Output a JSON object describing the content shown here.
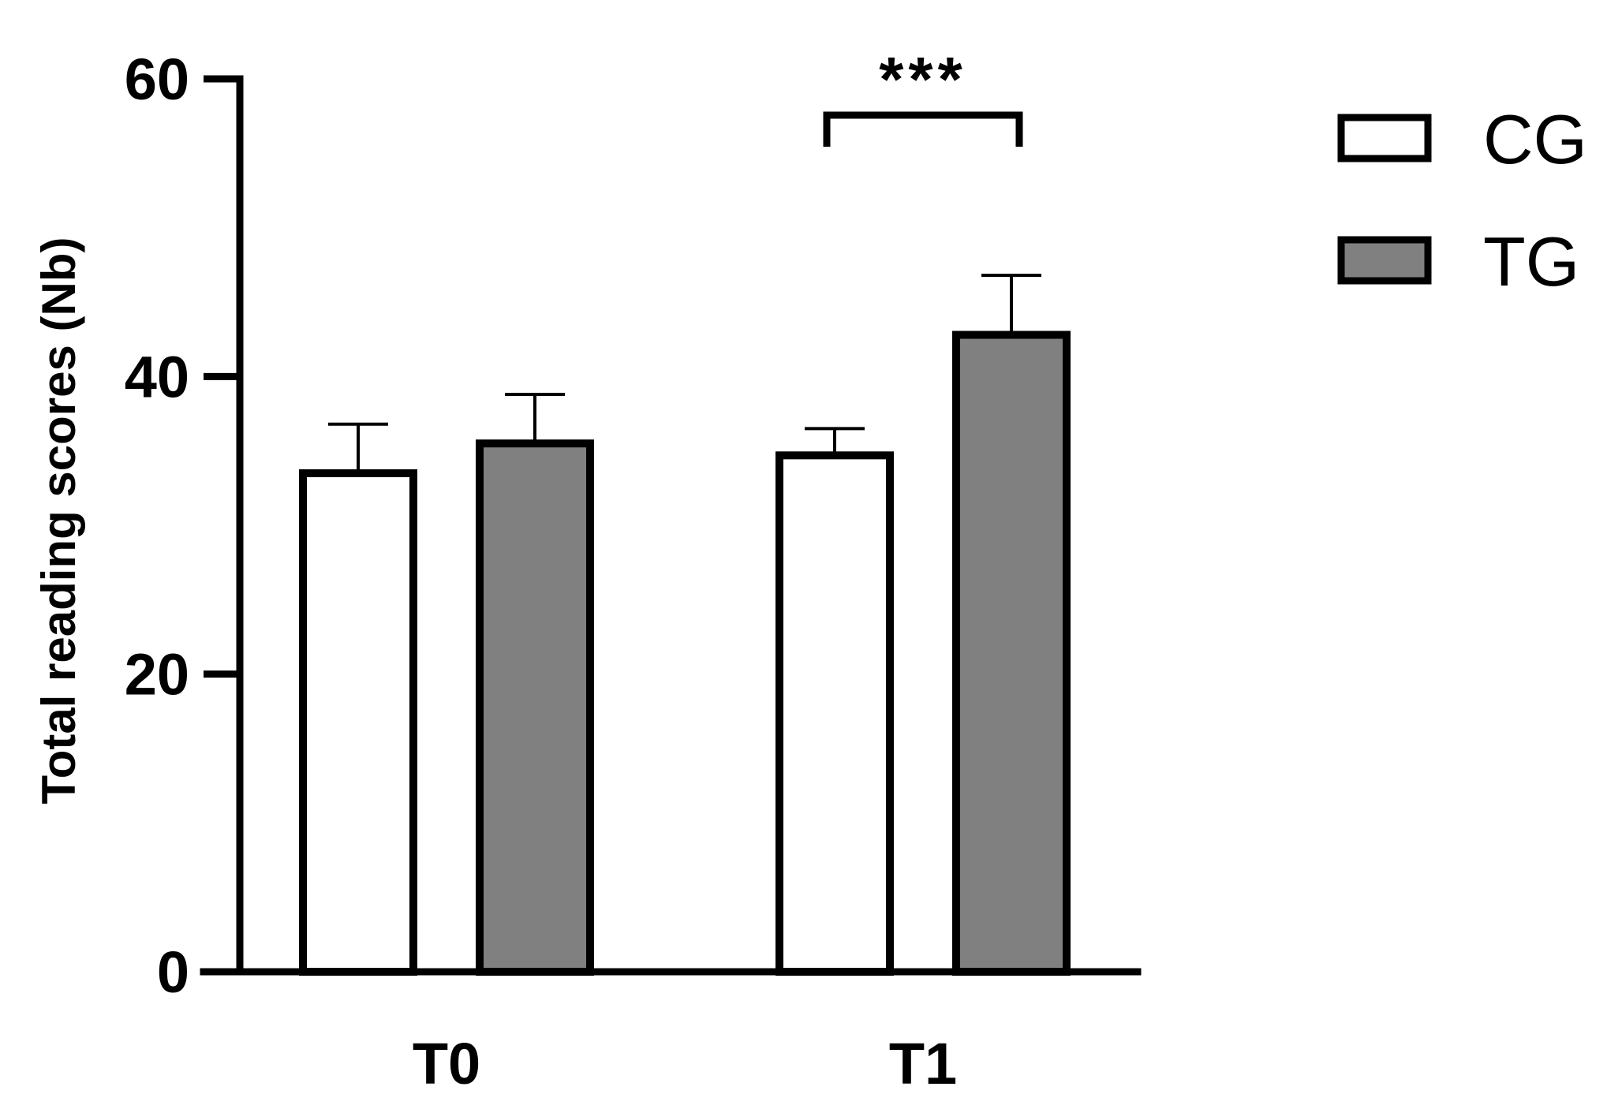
{
  "chart_data": {
    "type": "bar",
    "categories": [
      "T0",
      "T1"
    ],
    "ylabel": "Total reading scores (Nb)",
    "xlabel": "",
    "ylim": [
      0,
      60
    ],
    "yticks": [
      0,
      20,
      40,
      60
    ],
    "series": [
      {
        "name": "CG",
        "color": "#ffffff",
        "values": [
          33.5,
          34.7
        ],
        "errors": [
          3.3,
          1.8
        ]
      },
      {
        "name": "TG",
        "color": "#808080",
        "values": [
          35.5,
          42.8
        ],
        "errors": [
          3.3,
          4.0
        ]
      }
    ],
    "annotations": [
      {
        "text": "***",
        "category": "T1",
        "between": [
          "CG",
          "TG"
        ]
      }
    ],
    "legend": {
      "position": "top-right"
    },
    "grid": false
  }
}
